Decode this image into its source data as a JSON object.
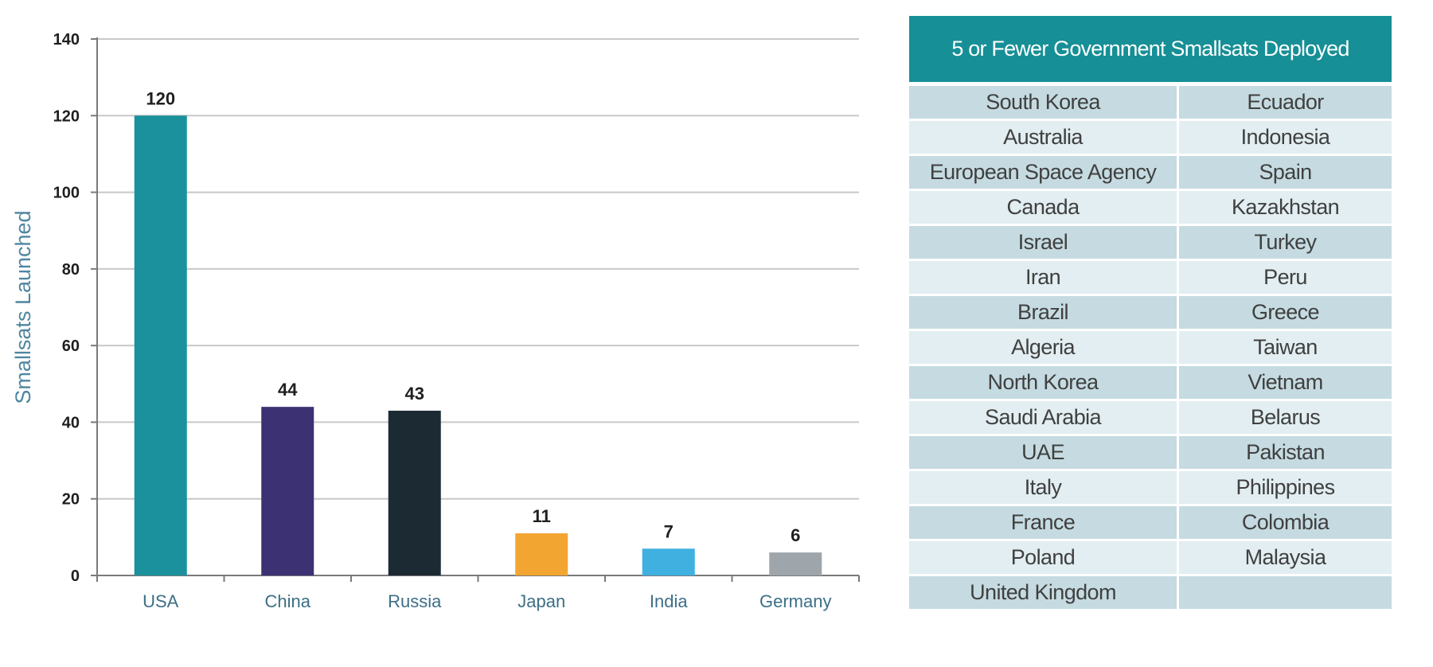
{
  "chart_data": {
    "type": "bar",
    "title": "",
    "xlabel": "",
    "ylabel": "Smallsats Launched",
    "categories": [
      "USA",
      "China",
      "Russia",
      "Japan",
      "India",
      "Germany"
    ],
    "values": [
      120,
      44,
      43,
      11,
      7,
      6
    ],
    "value_labels": [
      "120",
      "44",
      "43",
      "11",
      "7",
      "6"
    ],
    "bar_colors": [
      "#1a919c",
      "#3c3173",
      "#1c2b33",
      "#f2a531",
      "#3fb0e0",
      "#9ea5ab"
    ],
    "ylim": [
      0,
      140
    ],
    "yticks": [
      0,
      20,
      40,
      60,
      80,
      100,
      120,
      140
    ],
    "ytick_labels": [
      "0",
      "20",
      "40",
      "60",
      "80",
      "100",
      "120",
      "140"
    ],
    "grid": true,
    "legend": "none"
  },
  "table": {
    "title": "5 or Fewer Government Smallsats Deployed",
    "rows": [
      [
        "South Korea",
        "Ecuador"
      ],
      [
        "Australia",
        "Indonesia"
      ],
      [
        "European Space Agency",
        "Spain"
      ],
      [
        "Canada",
        "Kazakhstan"
      ],
      [
        "Israel",
        "Turkey"
      ],
      [
        "Iran",
        "Peru"
      ],
      [
        "Brazil",
        "Greece"
      ],
      [
        "Algeria",
        "Taiwan"
      ],
      [
        "North Korea",
        "Vietnam"
      ],
      [
        "Saudi Arabia",
        "Belarus"
      ],
      [
        "UAE",
        "Pakistan"
      ],
      [
        "Italy",
        "Philippines"
      ],
      [
        "France",
        "Colombia"
      ],
      [
        "Poland",
        "Malaysia"
      ],
      [
        "United Kingdom",
        ""
      ]
    ],
    "colors": {
      "header_bg": "#168f96",
      "row_dark": "#c5dbe1",
      "row_light": "#e2eef1"
    }
  }
}
